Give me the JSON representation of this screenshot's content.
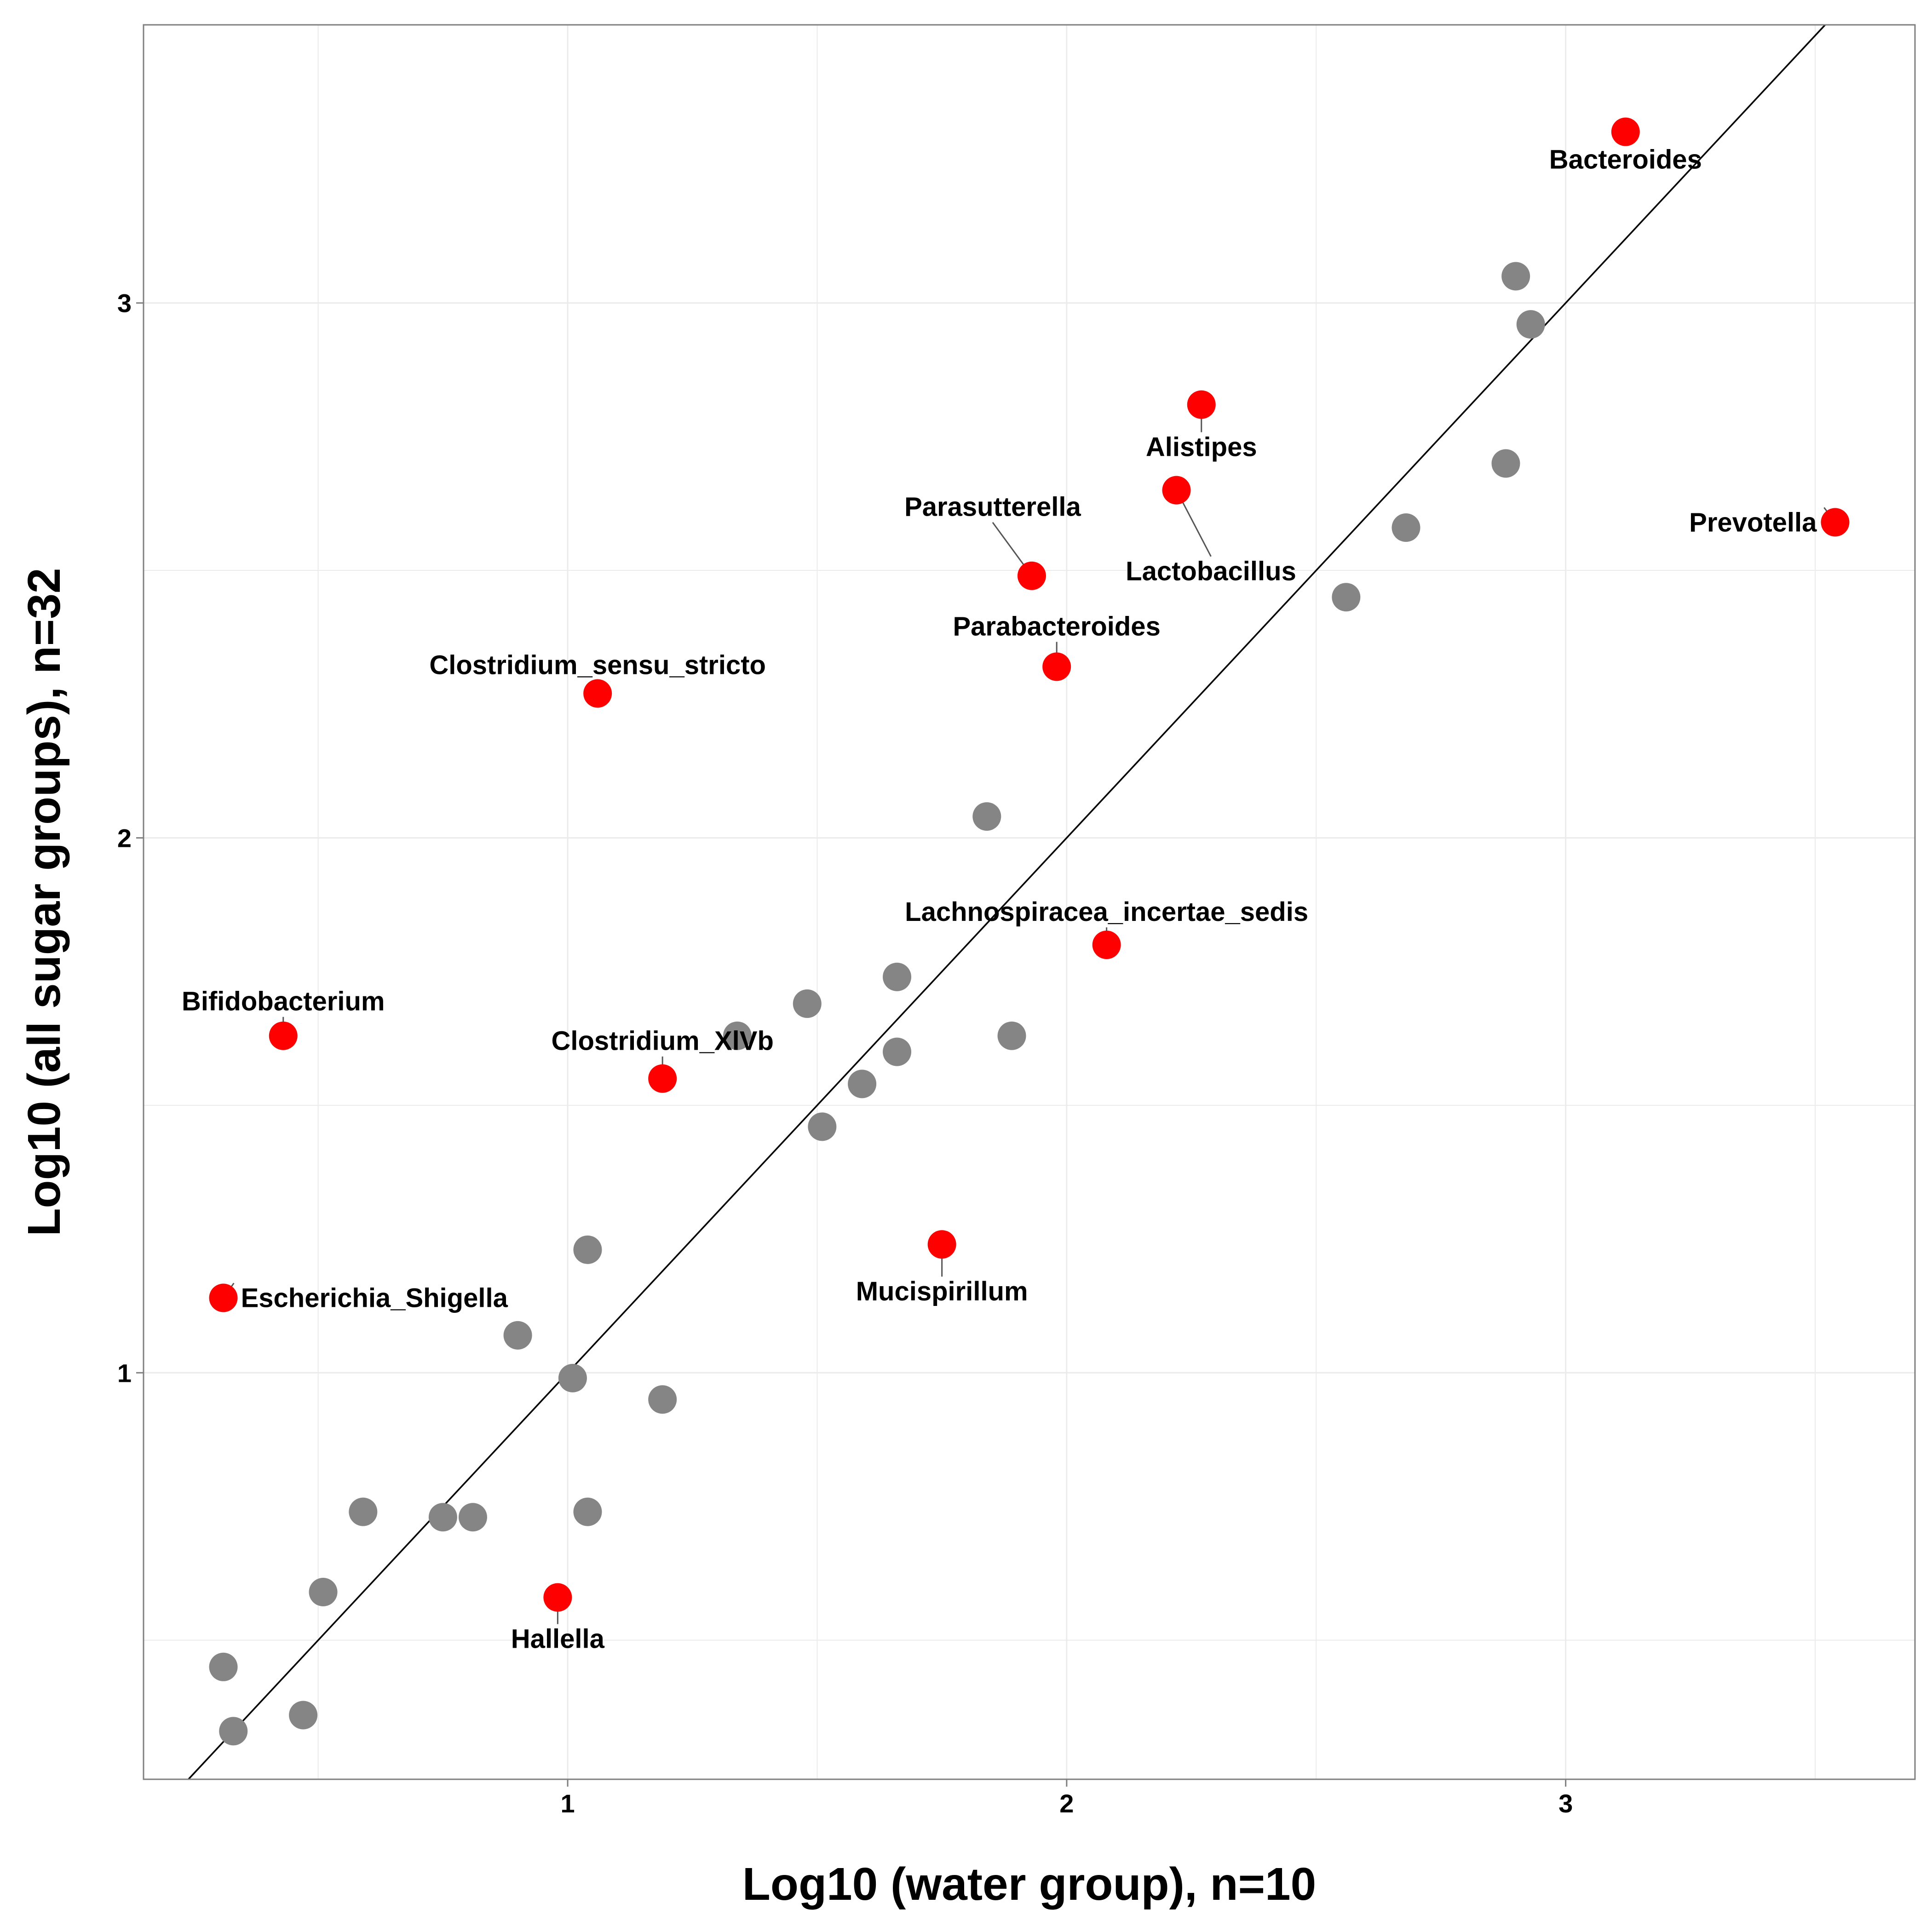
{
  "chart_data": {
    "type": "scatter",
    "title": "",
    "xlabel": "Log10 (water group), n=10",
    "ylabel": "Log10 (all sugar groups), n=32",
    "xlim": [
      0.15,
      3.7
    ],
    "ylim": [
      0.24,
      3.52
    ],
    "x_ticks": [
      "1",
      "2",
      "3"
    ],
    "y_ticks": [
      "1",
      "2",
      "3"
    ],
    "grid": true,
    "reference_line": "y = x",
    "colors": {
      "highlight": "#ff0000",
      "background_points": "#858585",
      "grid": "#ebebeb",
      "panel_border": "#7f7f7f"
    },
    "highlighted": [
      {
        "label": "Bacteroides",
        "x": 3.12,
        "y": 3.32
      },
      {
        "label": "Alistipes",
        "x": 2.27,
        "y": 2.81
      },
      {
        "label": "Prevotella",
        "x": 3.54,
        "y": 2.59
      },
      {
        "label": "Lactobacillus",
        "x": 2.22,
        "y": 2.65
      },
      {
        "label": "Parasutterella",
        "x": 1.93,
        "y": 2.49
      },
      {
        "label": "Parabacteroides",
        "x": 1.98,
        "y": 2.32
      },
      {
        "label": "Clostridium_sensu_stricto",
        "x": 1.06,
        "y": 2.27
      },
      {
        "label": "Lachnospiracea_incertae_sedis",
        "x": 2.08,
        "y": 1.8
      },
      {
        "label": "Bifidobacterium",
        "x": 0.43,
        "y": 1.63
      },
      {
        "label": "Clostridium_XlVb",
        "x": 1.19,
        "y": 1.55
      },
      {
        "label": "Mucispirillum",
        "x": 1.75,
        "y": 1.24
      },
      {
        "label": "Escherichia_Shigella",
        "x": 0.31,
        "y": 1.14
      },
      {
        "label": "Hallella",
        "x": 0.98,
        "y": 0.58
      }
    ],
    "other_points": [
      {
        "x": 2.9,
        "y": 3.05
      },
      {
        "x": 2.93,
        "y": 2.96
      },
      {
        "x": 2.88,
        "y": 2.7
      },
      {
        "x": 2.68,
        "y": 2.58
      },
      {
        "x": 2.56,
        "y": 2.45
      },
      {
        "x": 1.84,
        "y": 2.04
      },
      {
        "x": 1.66,
        "y": 1.74
      },
      {
        "x": 1.48,
        "y": 1.69
      },
      {
        "x": 1.34,
        "y": 1.63
      },
      {
        "x": 1.89,
        "y": 1.63
      },
      {
        "x": 1.66,
        "y": 1.6
      },
      {
        "x": 1.59,
        "y": 1.54
      },
      {
        "x": 1.51,
        "y": 1.46
      },
      {
        "x": 1.04,
        "y": 1.23
      },
      {
        "x": 0.9,
        "y": 1.07
      },
      {
        "x": 1.01,
        "y": 0.99
      },
      {
        "x": 1.19,
        "y": 0.95
      },
      {
        "x": 0.59,
        "y": 0.74
      },
      {
        "x": 0.75,
        "y": 0.73
      },
      {
        "x": 0.81,
        "y": 0.73
      },
      {
        "x": 1.04,
        "y": 0.74
      },
      {
        "x": 0.51,
        "y": 0.59
      },
      {
        "x": 0.31,
        "y": 0.45
      },
      {
        "x": 0.47,
        "y": 0.36
      },
      {
        "x": 0.33,
        "y": 0.33
      }
    ]
  }
}
